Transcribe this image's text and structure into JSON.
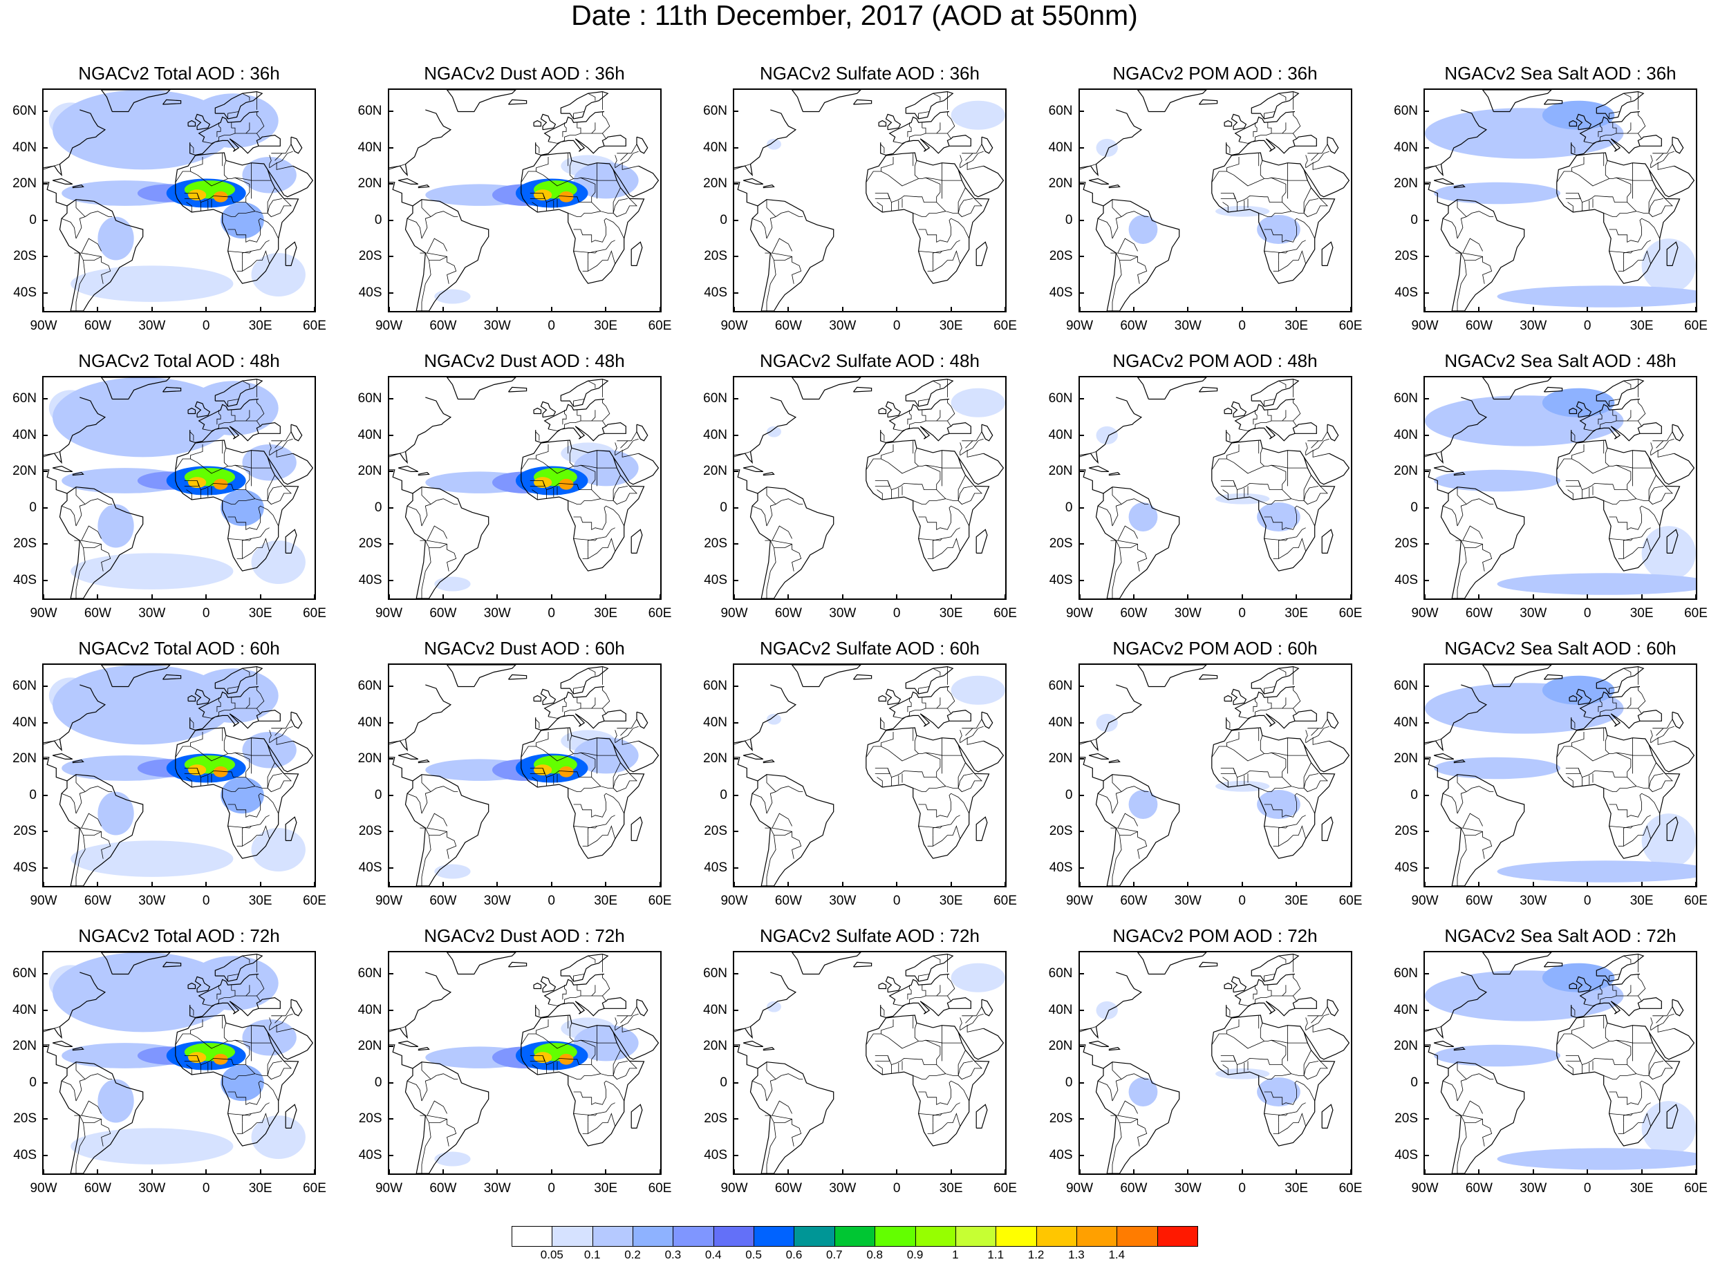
{
  "title": "Date : 11th December, 2017 (AOD at 550nm)",
  "lat_labels": [
    "60N",
    "40N",
    "20N",
    "0",
    "20S",
    "40S"
  ],
  "lon_labels": [
    "90W",
    "60W",
    "30W",
    "0",
    "30E",
    "60E"
  ],
  "panels": [
    [
      {
        "title": "NGACv2 Total AOD : 36h",
        "species": "total"
      },
      {
        "title": "NGACv2 Dust AOD : 36h",
        "species": "dust"
      },
      {
        "title": "NGACv2 Sulfate AOD : 36h",
        "species": "sulfate"
      },
      {
        "title": "NGACv2 POM AOD : 36h",
        "species": "pom"
      },
      {
        "title": "NGACv2 Sea Salt AOD : 36h",
        "species": "seasalt"
      }
    ],
    [
      {
        "title": "NGACv2 Total AOD : 48h",
        "species": "total"
      },
      {
        "title": "NGACv2 Dust AOD : 48h",
        "species": "dust"
      },
      {
        "title": "NGACv2 Sulfate AOD : 48h",
        "species": "sulfate"
      },
      {
        "title": "NGACv2 POM AOD : 48h",
        "species": "pom"
      },
      {
        "title": "NGACv2 Sea Salt AOD : 48h",
        "species": "seasalt"
      }
    ],
    [
      {
        "title": "NGACv2 Total AOD : 60h",
        "species": "total"
      },
      {
        "title": "NGACv2 Dust AOD : 60h",
        "species": "dust"
      },
      {
        "title": "NGACv2 Sulfate AOD : 60h",
        "species": "sulfate"
      },
      {
        "title": "NGACv2 POM AOD : 60h",
        "species": "pom"
      },
      {
        "title": "NGACv2 Sea Salt AOD : 60h",
        "species": "seasalt"
      }
    ],
    [
      {
        "title": "NGACv2 Total AOD : 72h",
        "species": "total"
      },
      {
        "title": "NGACv2 Dust AOD : 72h",
        "species": "dust"
      },
      {
        "title": "NGACv2 Sulfate AOD : 72h",
        "species": "sulfate"
      },
      {
        "title": "NGACv2 POM AOD : 72h",
        "species": "pom"
      },
      {
        "title": "NGACv2 Sea Salt  AOD : 72h",
        "species": "seasalt"
      }
    ]
  ],
  "colorbar": {
    "labels": [
      "0.05",
      "0.1",
      "0.2",
      "0.3",
      "0.4",
      "0.5",
      "0.6",
      "0.7",
      "0.8",
      "0.9",
      "1",
      "1.1",
      "1.2",
      "1.3",
      "1.4"
    ],
    "colors": [
      "#ffffff",
      "#d6e2ff",
      "#b5c9ff",
      "#8eb2ff",
      "#7f96ff",
      "#6370f8",
      "#0063ff",
      "#009696",
      "#00c633",
      "#63ff00",
      "#96ff00",
      "#c6ff33",
      "#ffff00",
      "#ffc600",
      "#ffa000",
      "#ff7c00",
      "#ff1900"
    ]
  }
}
